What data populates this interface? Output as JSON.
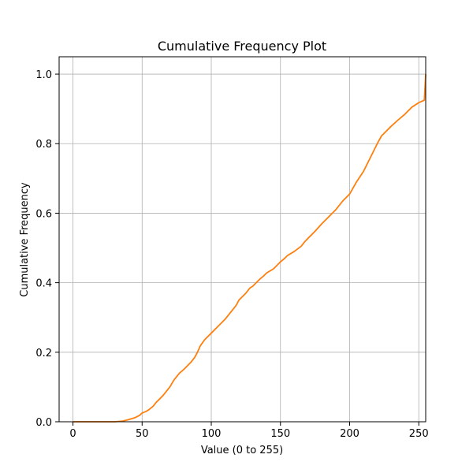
{
  "chart_data": {
    "type": "line",
    "title": "Cumulative Frequency Plot",
    "xlabel": "Value (0 to 255)",
    "ylabel": "Cumulative Frequency",
    "xlim": [
      -10,
      255
    ],
    "ylim": [
      0,
      1.05
    ],
    "xticks": [
      0,
      50,
      100,
      150,
      200,
      250
    ],
    "yticks": [
      0.0,
      0.2,
      0.4,
      0.6,
      0.8,
      1.0
    ],
    "xtick_labels": [
      "0",
      "50",
      "100",
      "150",
      "200",
      "250"
    ],
    "ytick_labels": [
      "0.0",
      "0.2",
      "0.4",
      "0.6",
      "0.8",
      "1.0"
    ],
    "grid": true,
    "series": [
      {
        "color": "#ff7f0e",
        "x": [
          0,
          10,
          20,
          30,
          36,
          40,
          45,
          48,
          50,
          53,
          55,
          58,
          60,
          65,
          70,
          73,
          75,
          77,
          80,
          85,
          88,
          90,
          92,
          95,
          100,
          105,
          110,
          113,
          115,
          118,
          120,
          125,
          128,
          130,
          135,
          138,
          140,
          145,
          150,
          153,
          155,
          160,
          165,
          168,
          170,
          175,
          180,
          185,
          190,
          195,
          200,
          205,
          210,
          215,
          220,
          223,
          225,
          230,
          235,
          240,
          245,
          250,
          254,
          255
        ],
        "y": [
          0.0,
          0.0,
          0.0,
          0.0,
          0.002,
          0.006,
          0.012,
          0.018,
          0.025,
          0.03,
          0.035,
          0.045,
          0.055,
          0.075,
          0.1,
          0.12,
          0.13,
          0.14,
          0.15,
          0.17,
          0.185,
          0.2,
          0.218,
          0.235,
          0.255,
          0.275,
          0.295,
          0.31,
          0.32,
          0.335,
          0.35,
          0.37,
          0.385,
          0.39,
          0.41,
          0.42,
          0.428,
          0.44,
          0.46,
          0.47,
          0.478,
          0.49,
          0.505,
          0.52,
          0.528,
          0.548,
          0.57,
          0.59,
          0.61,
          0.635,
          0.655,
          0.69,
          0.72,
          0.76,
          0.8,
          0.822,
          0.83,
          0.85,
          0.868,
          0.885,
          0.905,
          0.918,
          0.925,
          1.0
        ]
      }
    ]
  }
}
